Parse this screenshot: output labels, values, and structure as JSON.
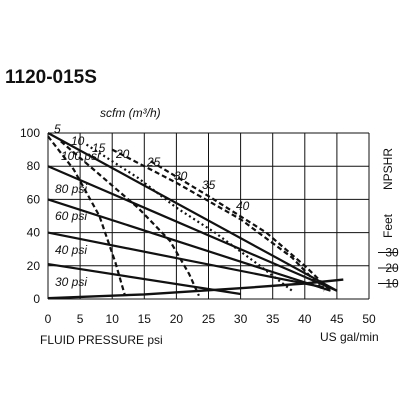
{
  "chart_data": {
    "type": "line",
    "title": "1120-015S",
    "xlabel": "FLUID PRESSURE psi",
    "xlabel_right": "US gal/min",
    "top_label": "scfm (m³/h)",
    "right_axis_labels": [
      "NPSHR",
      "Feet"
    ],
    "xlim": [
      0,
      50
    ],
    "ylim": [
      0,
      100
    ],
    "x_ticks": [
      "0",
      "5",
      "10",
      "15",
      "20",
      "25",
      "30",
      "35",
      "40",
      "45",
      "50"
    ],
    "y_ticks": [
      "0",
      "20",
      "40",
      "60",
      "80",
      "100"
    ],
    "right_ticks": [
      "10",
      "20",
      "30"
    ],
    "right_ylim": [
      0,
      30
    ],
    "grid": true,
    "pressure_curves": [
      {
        "label": "100 psi",
        "points": [
          [
            0,
            100
          ],
          [
            45,
            5
          ]
        ]
      },
      {
        "label": "80 psi",
        "points": [
          [
            0,
            80
          ],
          [
            45,
            5
          ]
        ]
      },
      {
        "label": "60 psi",
        "points": [
          [
            0,
            60
          ],
          [
            44,
            5
          ]
        ]
      },
      {
        "label": "40 psi",
        "points": [
          [
            0,
            40
          ],
          [
            43,
            7
          ]
        ]
      },
      {
        "label": "30 psi",
        "points": [
          [
            0,
            21
          ],
          [
            30,
            3
          ]
        ]
      }
    ],
    "air_curves": [
      {
        "label": "5",
        "points": [
          [
            0,
            98
          ],
          [
            4,
            78
          ],
          [
            8,
            50
          ],
          [
            10.5,
            22
          ],
          [
            12,
            2
          ]
        ]
      },
      {
        "label": "10",
        "points": [
          [
            2,
            95
          ],
          [
            8,
            75
          ],
          [
            14,
            55
          ],
          [
            19,
            35
          ],
          [
            22,
            15
          ],
          [
            23.5,
            2
          ]
        ]
      },
      {
        "label": "15",
        "points": [
          [
            6,
            93
          ],
          [
            14,
            73
          ],
          [
            20,
            55
          ],
          [
            26,
            40
          ],
          [
            33,
            20
          ],
          [
            38,
            5
          ]
        ]
      },
      {
        "label": "20",
        "points": [
          [
            10,
            90
          ],
          [
            20,
            70
          ],
          [
            30,
            48
          ],
          [
            38,
            25
          ],
          [
            43,
            5
          ]
        ]
      },
      {
        "label": "25",
        "points": [
          [
            16,
            83
          ],
          [
            25,
            62
          ],
          [
            34,
            40
          ],
          [
            40,
            20
          ],
          [
            44,
            5
          ]
        ]
      }
    ],
    "npshr_curve": {
      "points": [
        [
          0,
          0.5
        ],
        [
          15,
          3
        ],
        [
          30,
          7
        ],
        [
          40,
          10
        ],
        [
          46,
          12.5
        ]
      ]
    },
    "air_labels": [
      "5",
      "10",
      "15",
      "20",
      "25",
      "30",
      "35",
      "40"
    ],
    "pressure_labels": [
      "100 psi",
      "80 psi",
      "60 psi",
      "40 psi",
      "30 psi"
    ]
  }
}
